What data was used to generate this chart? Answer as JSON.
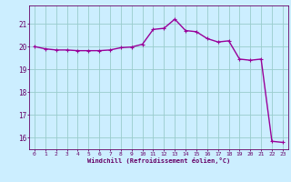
{
  "x": [
    0,
    1,
    2,
    3,
    4,
    5,
    6,
    7,
    8,
    9,
    10,
    11,
    12,
    13,
    14,
    15,
    16,
    17,
    18,
    19,
    20,
    21,
    22,
    23
  ],
  "y": [
    20.0,
    19.9,
    19.85,
    19.85,
    19.82,
    19.82,
    19.82,
    19.85,
    19.95,
    19.98,
    20.1,
    20.75,
    20.8,
    21.2,
    20.7,
    20.65,
    20.35,
    20.2,
    20.25,
    19.45,
    19.4,
    19.45,
    15.85,
    15.8
  ],
  "line_color": "#990099",
  "marker": "+",
  "marker_size": 3,
  "line_width": 1.0,
  "bg_color": "#cceeff",
  "grid_color": "#99cccc",
  "xlabel": "Windchill (Refroidissement éolien,°C)",
  "xlabel_color": "#660066",
  "tick_color": "#660066",
  "ylim": [
    15.5,
    21.8
  ],
  "yticks": [
    16,
    17,
    18,
    19,
    20,
    21
  ],
  "xticks": [
    0,
    1,
    2,
    3,
    4,
    5,
    6,
    7,
    8,
    9,
    10,
    11,
    12,
    13,
    14,
    15,
    16,
    17,
    18,
    19,
    20,
    21,
    22,
    23
  ],
  "axis_line_color": "#660066"
}
